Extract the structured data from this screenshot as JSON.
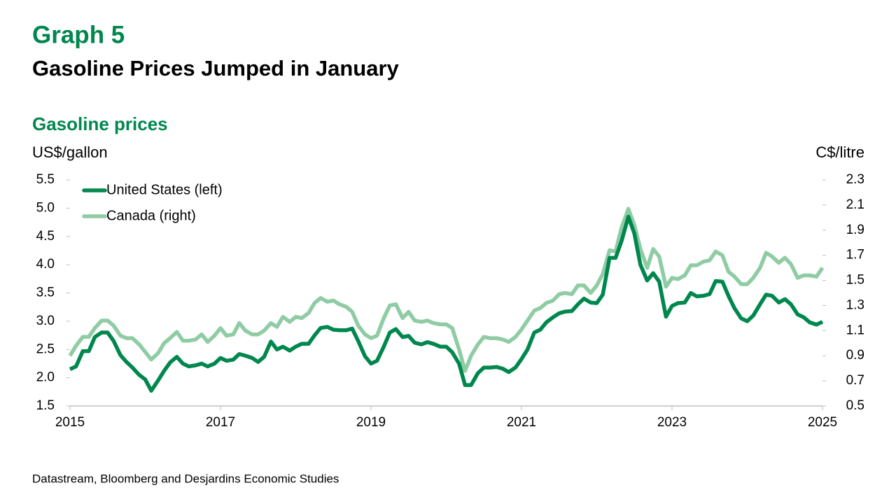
{
  "chart_data": {
    "type": "line",
    "header": "Graph 5",
    "title": "Gasoline Prices Jumped in January",
    "subtitle": "Gasoline prices",
    "ylabel": "US$/gallon",
    "y2label": "C$/litre",
    "source": "Datastream, Bloomberg and Desjardins Economic Studies",
    "legend": "upper left",
    "xlim": [
      2015,
      2025
    ],
    "xticks": [
      2015,
      2017,
      2019,
      2021,
      2023,
      2025
    ],
    "ylim": [
      1.5,
      5.5
    ],
    "yticks": [
      1.5,
      {
        "value": 2,
        "label": "2.0"
      },
      2.5,
      {
        "value": 3,
        "label": "3.0"
      },
      3.5,
      {
        "value": 4,
        "label": "4.0"
      },
      4.5,
      {
        "value": 5,
        "label": "5.0"
      },
      5.5
    ],
    "y2lim": [
      0.5,
      2.3
    ],
    "y2ticks": [
      0.5,
      0.7,
      0.9,
      1.1,
      1.3,
      1.5,
      1.7,
      1.9,
      2.1,
      2.3
    ],
    "x": [
      2015,
      2015.08,
      2015.17,
      2015.25,
      2015.33,
      2015.42,
      2015.5,
      2015.58,
      2015.67,
      2015.75,
      2015.83,
      2015.92,
      2016,
      2016.08,
      2016.17,
      2016.25,
      2016.33,
      2016.42,
      2016.5,
      2016.58,
      2016.67,
      2016.75,
      2016.83,
      2016.92,
      2017,
      2017.08,
      2017.17,
      2017.25,
      2017.33,
      2017.42,
      2017.5,
      2017.58,
      2017.67,
      2017.75,
      2017.83,
      2017.92,
      2018,
      2018.08,
      2018.17,
      2018.25,
      2018.33,
      2018.42,
      2018.5,
      2018.58,
      2018.67,
      2018.75,
      2018.83,
      2018.92,
      2019,
      2019.08,
      2019.17,
      2019.25,
      2019.33,
      2019.42,
      2019.5,
      2019.58,
      2019.67,
      2019.75,
      2019.83,
      2019.92,
      2020,
      2020.08,
      2020.17,
      2020.25,
      2020.33,
      2020.42,
      2020.5,
      2020.58,
      2020.67,
      2020.75,
      2020.83,
      2020.92,
      2021,
      2021.08,
      2021.17,
      2021.25,
      2021.33,
      2021.42,
      2021.5,
      2021.58,
      2021.67,
      2021.75,
      2021.83,
      2021.92,
      2022,
      2022.08,
      2022.17,
      2022.25,
      2022.33,
      2022.42,
      2022.5,
      2022.58,
      2022.67,
      2022.75,
      2022.83,
      2022.92,
      2023,
      2023.08,
      2023.17,
      2023.25,
      2023.33,
      2023.42,
      2023.5,
      2023.58,
      2023.67,
      2023.75,
      2023.83,
      2023.92,
      2024,
      2024.08,
      2024.17,
      2024.25,
      2024.33,
      2024.42,
      2024.5,
      2024.58,
      2024.67,
      2024.75,
      2024.83,
      2024.92,
      2025
    ],
    "series": [
      {
        "name": "United States (left)",
        "color": "#00874e",
        "values": [
          2.15,
          2.2,
          2.47,
          2.47,
          2.72,
          2.8,
          2.8,
          2.65,
          2.4,
          2.28,
          2.18,
          2.05,
          1.97,
          1.77,
          1.95,
          2.12,
          2.27,
          2.37,
          2.25,
          2.2,
          2.22,
          2.25,
          2.2,
          2.25,
          2.35,
          2.3,
          2.32,
          2.42,
          2.39,
          2.35,
          2.28,
          2.37,
          2.64,
          2.5,
          2.55,
          2.48,
          2.55,
          2.6,
          2.6,
          2.75,
          2.88,
          2.9,
          2.85,
          2.84,
          2.84,
          2.87,
          2.65,
          2.38,
          2.25,
          2.3,
          2.55,
          2.8,
          2.86,
          2.72,
          2.74,
          2.62,
          2.59,
          2.63,
          2.6,
          2.55,
          2.55,
          2.45,
          2.25,
          1.87,
          1.87,
          2.08,
          2.18,
          2.18,
          2.19,
          2.16,
          2.1,
          2.18,
          2.33,
          2.5,
          2.8,
          2.85,
          2.98,
          3.07,
          3.14,
          3.17,
          3.18,
          3.3,
          3.4,
          3.33,
          3.32,
          3.47,
          4.12,
          4.12,
          4.42,
          4.85,
          4.55,
          4.0,
          3.72,
          3.85,
          3.7,
          3.08,
          3.27,
          3.32,
          3.33,
          3.5,
          3.44,
          3.45,
          3.48,
          3.71,
          3.7,
          3.45,
          3.23,
          3.05,
          3.0,
          3.1,
          3.3,
          3.47,
          3.45,
          3.33,
          3.39,
          3.3,
          3.12,
          3.07,
          2.98,
          2.94,
          2.99
        ]
      },
      {
        "name": "Canada (right)",
        "color": "#8fcca4",
        "axis": "y2",
        "values": [
          0.9,
          0.98,
          1.05,
          1.05,
          1.12,
          1.18,
          1.18,
          1.14,
          1.06,
          1.04,
          1.04,
          0.99,
          0.93,
          0.87,
          0.92,
          1.0,
          1.04,
          1.09,
          1.02,
          1.02,
          1.03,
          1.07,
          1.01,
          1.06,
          1.12,
          1.06,
          1.07,
          1.16,
          1.1,
          1.07,
          1.07,
          1.1,
          1.16,
          1.13,
          1.21,
          1.17,
          1.21,
          1.2,
          1.24,
          1.32,
          1.36,
          1.33,
          1.34,
          1.31,
          1.29,
          1.25,
          1.14,
          1.07,
          1.04,
          1.06,
          1.2,
          1.3,
          1.31,
          1.2,
          1.25,
          1.18,
          1.17,
          1.18,
          1.16,
          1.15,
          1.15,
          1.12,
          0.95,
          0.78,
          0.9,
          0.99,
          1.05,
          1.04,
          1.04,
          1.03,
          1.01,
          1.05,
          1.11,
          1.18,
          1.26,
          1.28,
          1.32,
          1.34,
          1.39,
          1.4,
          1.39,
          1.46,
          1.46,
          1.4,
          1.46,
          1.55,
          1.74,
          1.73,
          1.92,
          2.07,
          1.94,
          1.75,
          1.6,
          1.75,
          1.69,
          1.45,
          1.52,
          1.51,
          1.54,
          1.62,
          1.62,
          1.65,
          1.66,
          1.73,
          1.7,
          1.57,
          1.53,
          1.47,
          1.47,
          1.52,
          1.6,
          1.72,
          1.69,
          1.64,
          1.68,
          1.63,
          1.52,
          1.54,
          1.54,
          1.53,
          1.6
        ]
      }
    ]
  }
}
